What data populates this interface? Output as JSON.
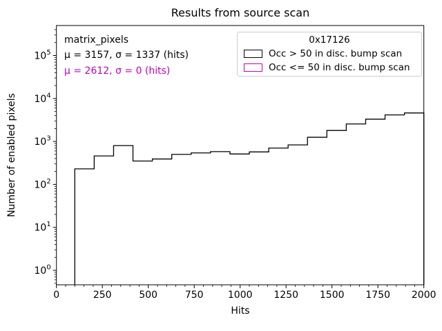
{
  "figure": {
    "title": "Results from source scan",
    "xlabel": "Hits",
    "ylabel": "Number of enabled pixels"
  },
  "annotations": {
    "dataset_label": "matrix_pixels",
    "stats_primary": "μ = 3157, σ = 1337 (hits)",
    "stats_secondary": "μ = 2612, σ = 0 (hits)"
  },
  "legend": {
    "title": "0x17126",
    "entries": [
      {
        "label": "Occ > 50 in disc. bump scan",
        "color": "#000000"
      },
      {
        "label": "Occ <= 50 in disc. bump scan",
        "color": "#BF00BF"
      }
    ]
  },
  "colors": {
    "histogram_line": "#000000",
    "secondary_magenta": "#BF00BF",
    "legend_border": "#cccccc"
  },
  "chart_data": {
    "type": "histogram",
    "title": "Results from source scan",
    "xlabel": "Hits",
    "ylabel": "Number of enabled pixels",
    "y_scale": "log",
    "x_range": [
      0,
      2000
    ],
    "y_range": [
      0.46,
      500000
    ],
    "bin_start": 100,
    "bin_end": 2000,
    "n_bins": 18,
    "counts": [
      230,
      460,
      800,
      350,
      390,
      500,
      540,
      580,
      510,
      570,
      700,
      830,
      1250,
      1800,
      2550,
      3300,
      4150,
      4600
    ],
    "xticks": [
      0,
      250,
      500,
      750,
      1000,
      1250,
      1500,
      1750,
      2000
    ],
    "x_minor_step": 50,
    "ytick_exponents": [
      0,
      1,
      2,
      3,
      4,
      5
    ],
    "series_stats": [
      {
        "name": "Occ > 50 in disc. bump scan",
        "mu": 3157,
        "sigma": 1337
      },
      {
        "name": "Occ <= 50 in disc. bump scan",
        "mu": 2612,
        "sigma": 0
      }
    ],
    "legend_position": "upper right",
    "grid": false
  }
}
